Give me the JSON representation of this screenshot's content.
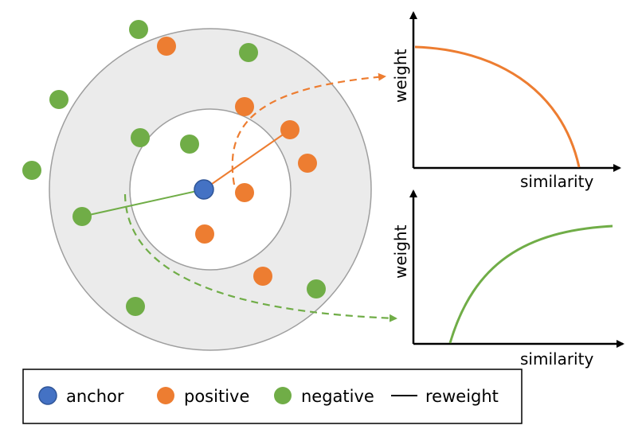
{
  "colors": {
    "anchor": "#4472C4",
    "anchor_stroke": "#2F5597",
    "positive": "#ED7D31",
    "negative": "#70AD47",
    "region_fill": "#EBEBEB",
    "region_stroke": "#9E9E9E",
    "axis": "#000000"
  },
  "charts": {
    "top": {
      "xlabel": "similarity",
      "ylabel": "weight",
      "curve": "decreasing"
    },
    "bottom": {
      "xlabel": "similarity",
      "ylabel": "weight",
      "curve": "increasing"
    }
  },
  "legend": {
    "items": [
      {
        "marker": "anchor-dot",
        "label": "anchor"
      },
      {
        "marker": "positive-dot",
        "label": "positive"
      },
      {
        "marker": "negative-dot",
        "label": "negative"
      },
      {
        "marker": "reweight-line",
        "label": "reweight"
      }
    ]
  }
}
